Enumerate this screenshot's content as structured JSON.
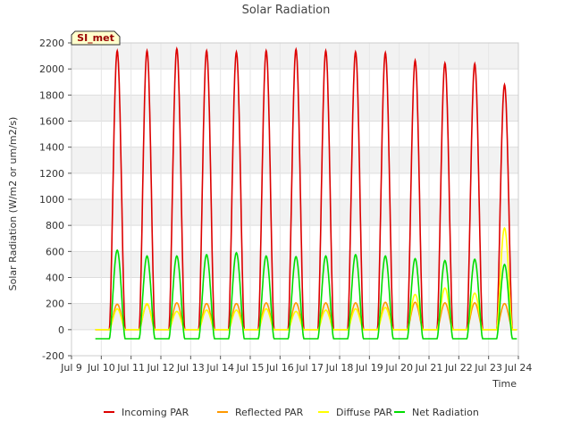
{
  "chart_data": {
    "type": "line",
    "title": "Solar Radiation",
    "xlabel": "Time",
    "ylabel": "Solar Radiation (W/m2 or um/m2/s)",
    "site_label": "SI_met",
    "xlim": [
      9,
      24
    ],
    "ylim": [
      -200,
      2200
    ],
    "x_ticks": [
      9,
      10,
      11,
      12,
      13,
      14,
      15,
      16,
      17,
      18,
      19,
      20,
      21,
      22,
      23,
      24
    ],
    "x_tick_labels": [
      "Jul 9",
      "Jul 10",
      "Jul 11",
      "Jul 12",
      "Jul 13",
      "Jul 14",
      "Jul 15",
      "Jul 16",
      "Jul 17",
      "Jul 18",
      "Jul 19",
      "Jul 20",
      "Jul 21",
      "Jul 22",
      "Jul 23",
      "Jul 24"
    ],
    "y_ticks": [
      -200,
      0,
      200,
      400,
      600,
      800,
      1000,
      1200,
      1400,
      1600,
      1800,
      2000,
      2200
    ],
    "legend_position": "bottom-center",
    "days": [
      10,
      11,
      12,
      13,
      14,
      15,
      16,
      17,
      18,
      19,
      20,
      21,
      22,
      23
    ],
    "series": [
      {
        "name": "Incoming PAR",
        "color": "#dd0000",
        "peak_values": [
          2140,
          2140,
          2155,
          2140,
          2130,
          2140,
          2150,
          2140,
          2130,
          2125,
          2065,
          2045,
          2040,
          1880
        ],
        "night_value": 0
      },
      {
        "name": "Reflected PAR",
        "color": "#ff9900",
        "peak_values": [
          195,
          195,
          205,
          200,
          200,
          205,
          205,
          205,
          205,
          210,
          210,
          205,
          205,
          200
        ],
        "night_value": 0
      },
      {
        "name": "Diffuse PAR",
        "color": "#ffff00",
        "peak_values": [
          160,
          200,
          140,
          150,
          150,
          160,
          140,
          150,
          160,
          170,
          270,
          320,
          280,
          780
        ],
        "night_value": 0
      },
      {
        "name": "Net Radiation",
        "color": "#00dd00",
        "peak_values": [
          610,
          565,
          565,
          575,
          590,
          565,
          560,
          565,
          575,
          565,
          545,
          530,
          540,
          500
        ],
        "night_value": -70
      }
    ]
  }
}
